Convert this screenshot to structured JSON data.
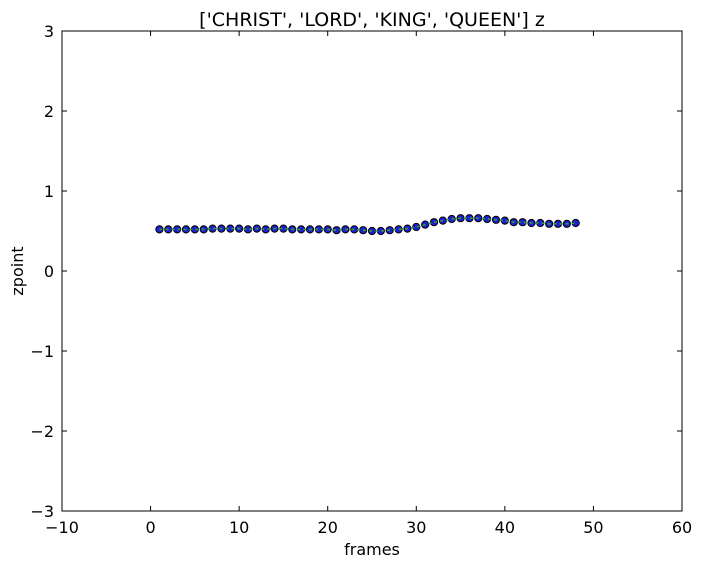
{
  "chart_data": {
    "type": "scatter",
    "title": "['CHRIST', 'LORD', 'KING', 'QUEEN'] z",
    "xlabel": "frames",
    "ylabel": "zpoint",
    "xlim": [
      -10,
      60
    ],
    "ylim": [
      -3,
      3
    ],
    "x_ticks": [
      -10,
      0,
      10,
      20,
      30,
      40,
      50,
      60
    ],
    "y_ticks": [
      -3,
      -2,
      -1,
      0,
      1,
      2,
      3
    ],
    "x_tick_labels": [
      "−10",
      "0",
      "10",
      "20",
      "30",
      "40",
      "50",
      "60"
    ],
    "y_tick_labels": [
      "−3",
      "−2",
      "−1",
      "0",
      "1",
      "2",
      "3"
    ],
    "grid": false,
    "legend": "none",
    "series": [
      {
        "marker_color": "#1f1fd6",
        "edge_color": "#000000",
        "line_color": "#2e9e2e",
        "x": [
          1,
          2,
          3,
          4,
          5,
          6,
          7,
          8,
          9,
          10,
          11,
          12,
          13,
          14,
          15,
          16,
          17,
          18,
          19,
          20,
          21,
          22,
          23,
          24,
          25,
          26,
          27,
          28,
          29,
          30,
          31,
          32,
          33,
          34,
          35,
          36,
          37,
          38,
          39,
          40,
          41,
          42,
          43,
          44,
          45,
          46,
          47,
          48
        ],
        "y": [
          0.52,
          0.52,
          0.52,
          0.52,
          0.52,
          0.52,
          0.53,
          0.53,
          0.53,
          0.53,
          0.52,
          0.53,
          0.52,
          0.53,
          0.53,
          0.52,
          0.52,
          0.52,
          0.52,
          0.52,
          0.51,
          0.52,
          0.52,
          0.51,
          0.5,
          0.5,
          0.51,
          0.52,
          0.53,
          0.55,
          0.58,
          0.61,
          0.63,
          0.65,
          0.66,
          0.66,
          0.66,
          0.65,
          0.64,
          0.63,
          0.61,
          0.61,
          0.6,
          0.6,
          0.59,
          0.59,
          0.59,
          0.6
        ]
      }
    ]
  }
}
